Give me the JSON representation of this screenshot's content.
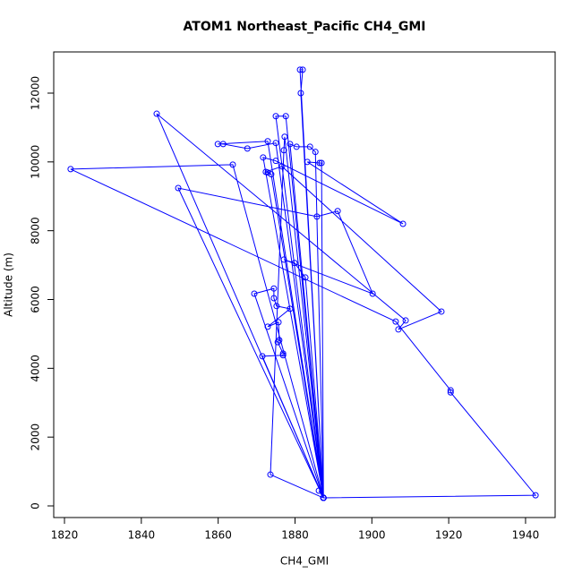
{
  "chart_data": {
    "type": "line",
    "title": "ATOM1 Northeast_Pacific CH4_GMI",
    "x_label": "CH4_GMI",
    "y_label": "Altitude (m)",
    "xlim": [
      1817.2,
      1947.7
    ],
    "ylim": [
      -338,
      13197
    ],
    "xticks": [
      1820,
      1840,
      1860,
      1880,
      1900,
      1920,
      1940
    ],
    "yticks": [
      0,
      2000,
      4000,
      6000,
      8000,
      10000,
      12000
    ],
    "markers": true,
    "series": [
      {
        "color": "#0000ff",
        "x": [
          1887.4,
          1873.6,
          1877.1,
          1877.3,
          1887.4,
          1881.3,
          1882.0,
          1881.5,
          1887.4,
          1877.6,
          1875.0,
          1887.4,
          1872.9,
          1859.9,
          1861.3,
          1867.6,
          1875.0,
          1887.4,
          1878.7,
          1880.4,
          1883.9,
          1885.3,
          1887.4,
          1886.9,
          1886.4,
          1883.2,
          1908.1,
          1875.0,
          1871.7,
          1887.4,
          1863.8,
          1821.6,
          1906.2,
          1920.5,
          1920.5,
          1942.6,
          1887.4,
          1844.0,
          1908.8,
          1906.9,
          1918.1,
          1876.6,
          1872.4,
          1872.9,
          1873.8,
          1887.4,
          1849.6,
          1885.7,
          1891.1,
          1900.2,
          1877.1,
          1879.9,
          1882.7,
          1887.4,
          1869.4,
          1874.5,
          1874.5,
          1875.2,
          1878.7,
          1872.9,
          1875.7,
          1875.9,
          1875.5,
          1876.9,
          1876.9,
          1871.5,
          1887.4,
          1886.2
        ],
        "values": [
          234,
          910,
          10340,
          10730,
          234,
          12680,
          12680,
          12000,
          234,
          11330,
          11330,
          234,
          10600,
          10520,
          10520,
          10390,
          10550,
          234,
          10520,
          10440,
          10440,
          10290,
          234,
          9970,
          9970,
          10000,
          8200,
          10030,
          10130,
          234,
          9920,
          9790,
          5360,
          3360,
          3300,
          310,
          234,
          11400,
          5390,
          5130,
          5650,
          9870,
          9710,
          9690,
          9640,
          234,
          9240,
          8410,
          8570,
          6170,
          7160,
          7060,
          6640,
          234,
          6170,
          6320,
          6040,
          5810,
          5730,
          5210,
          5340,
          4820,
          4760,
          4430,
          4380,
          4350,
          234,
          443
        ]
      }
    ]
  }
}
